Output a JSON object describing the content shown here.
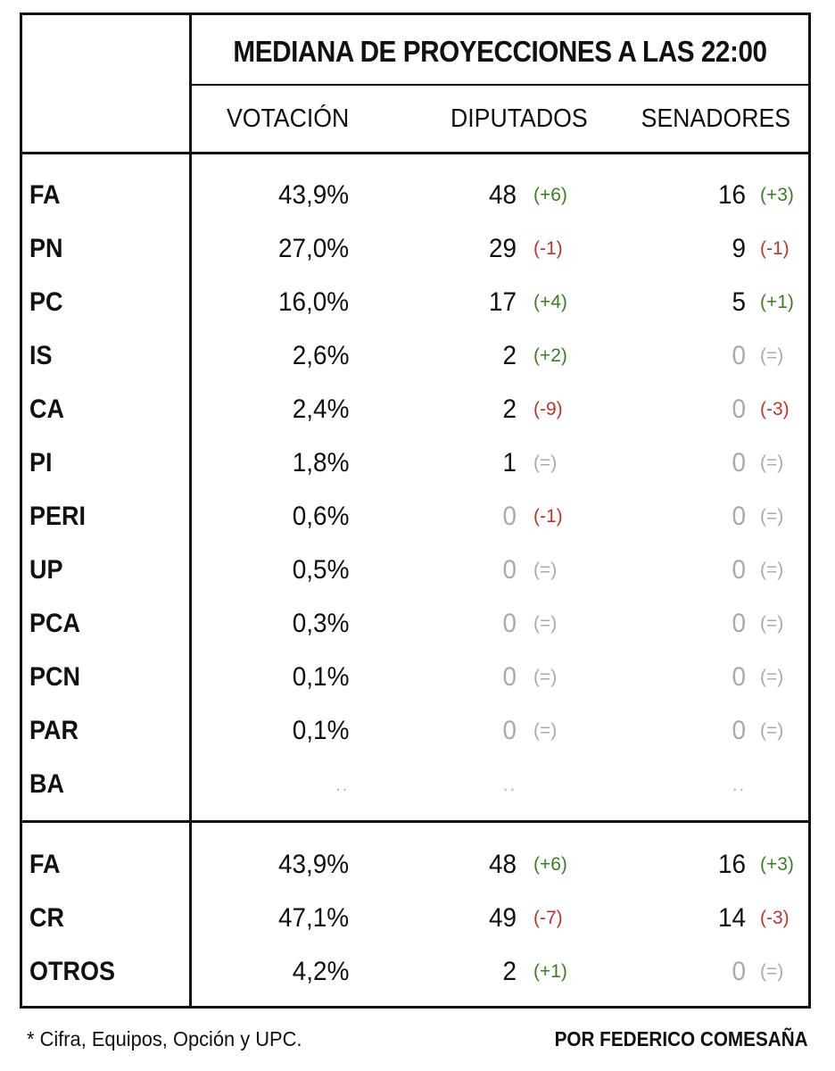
{
  "title": "MEDIANA DE PROYECCIONES A LAS 22:00",
  "columns": {
    "votacion": "VOTACIÓN",
    "diputados": "DIPUTADOS",
    "senadores": "SENADORES"
  },
  "colors": {
    "increase": "#3e7d24",
    "decrease": "#c0352b",
    "neutral": "#aaaaaa",
    "text": "#111111"
  },
  "rows": [
    {
      "party": "FA",
      "vote": "43,9%",
      "dip": "48",
      "dip_delta": "(+6)",
      "sen": "16",
      "sen_delta": "(+3)"
    },
    {
      "party": "PN",
      "vote": "27,0%",
      "dip": "29",
      "dip_delta": "(-1)",
      "sen": "9",
      "sen_delta": "(-1)"
    },
    {
      "party": "PC",
      "vote": "16,0%",
      "dip": "17",
      "dip_delta": "(+4)",
      "sen": "5",
      "sen_delta": "(+1)"
    },
    {
      "party": "IS",
      "vote": "2,6%",
      "dip": "2",
      "dip_delta": "(+2)",
      "sen": "0",
      "sen_delta": "(=)"
    },
    {
      "party": "CA",
      "vote": "2,4%",
      "dip": "2",
      "dip_delta": "(-9)",
      "sen": "0",
      "sen_delta": "(-3)"
    },
    {
      "party": "PI",
      "vote": "1,8%",
      "dip": "1",
      "dip_delta": "(=)",
      "sen": "0",
      "sen_delta": "(=)"
    },
    {
      "party": "PERI",
      "vote": "0,6%",
      "dip": "0",
      "dip_delta": "(-1)",
      "sen": "0",
      "sen_delta": "(=)"
    },
    {
      "party": "UP",
      "vote": "0,5%",
      "dip": "0",
      "dip_delta": "(=)",
      "sen": "0",
      "sen_delta": "(=)"
    },
    {
      "party": "PCA",
      "vote": "0,3%",
      "dip": "0",
      "dip_delta": "(=)",
      "sen": "0",
      "sen_delta": "(=)"
    },
    {
      "party": "PCN",
      "vote": "0,1%",
      "dip": "0",
      "dip_delta": "(=)",
      "sen": "0",
      "sen_delta": "(=)"
    },
    {
      "party": "PAR",
      "vote": "0,1%",
      "dip": "0",
      "dip_delta": "(=)",
      "sen": "0",
      "sen_delta": "(=)"
    },
    {
      "party": "BA",
      "vote": "..",
      "dip": "..",
      "dip_delta": "",
      "sen": "..",
      "sen_delta": ""
    }
  ],
  "totals": [
    {
      "party": "FA",
      "vote": "43,9%",
      "dip": "48",
      "dip_delta": "(+6)",
      "sen": "16",
      "sen_delta": "(+3)"
    },
    {
      "party": "CR",
      "vote": "47,1%",
      "dip": "49",
      "dip_delta": "(-7)",
      "sen": "14",
      "sen_delta": "(-3)"
    },
    {
      "party": "OTROS",
      "vote": "4,2%",
      "dip": "2",
      "dip_delta": "(+1)",
      "sen": "0",
      "sen_delta": "(=)"
    }
  ],
  "footnote": "* Cifra, Equipos, Opción y UPC.",
  "byline": "POR FEDERICO COMESAÑA"
}
